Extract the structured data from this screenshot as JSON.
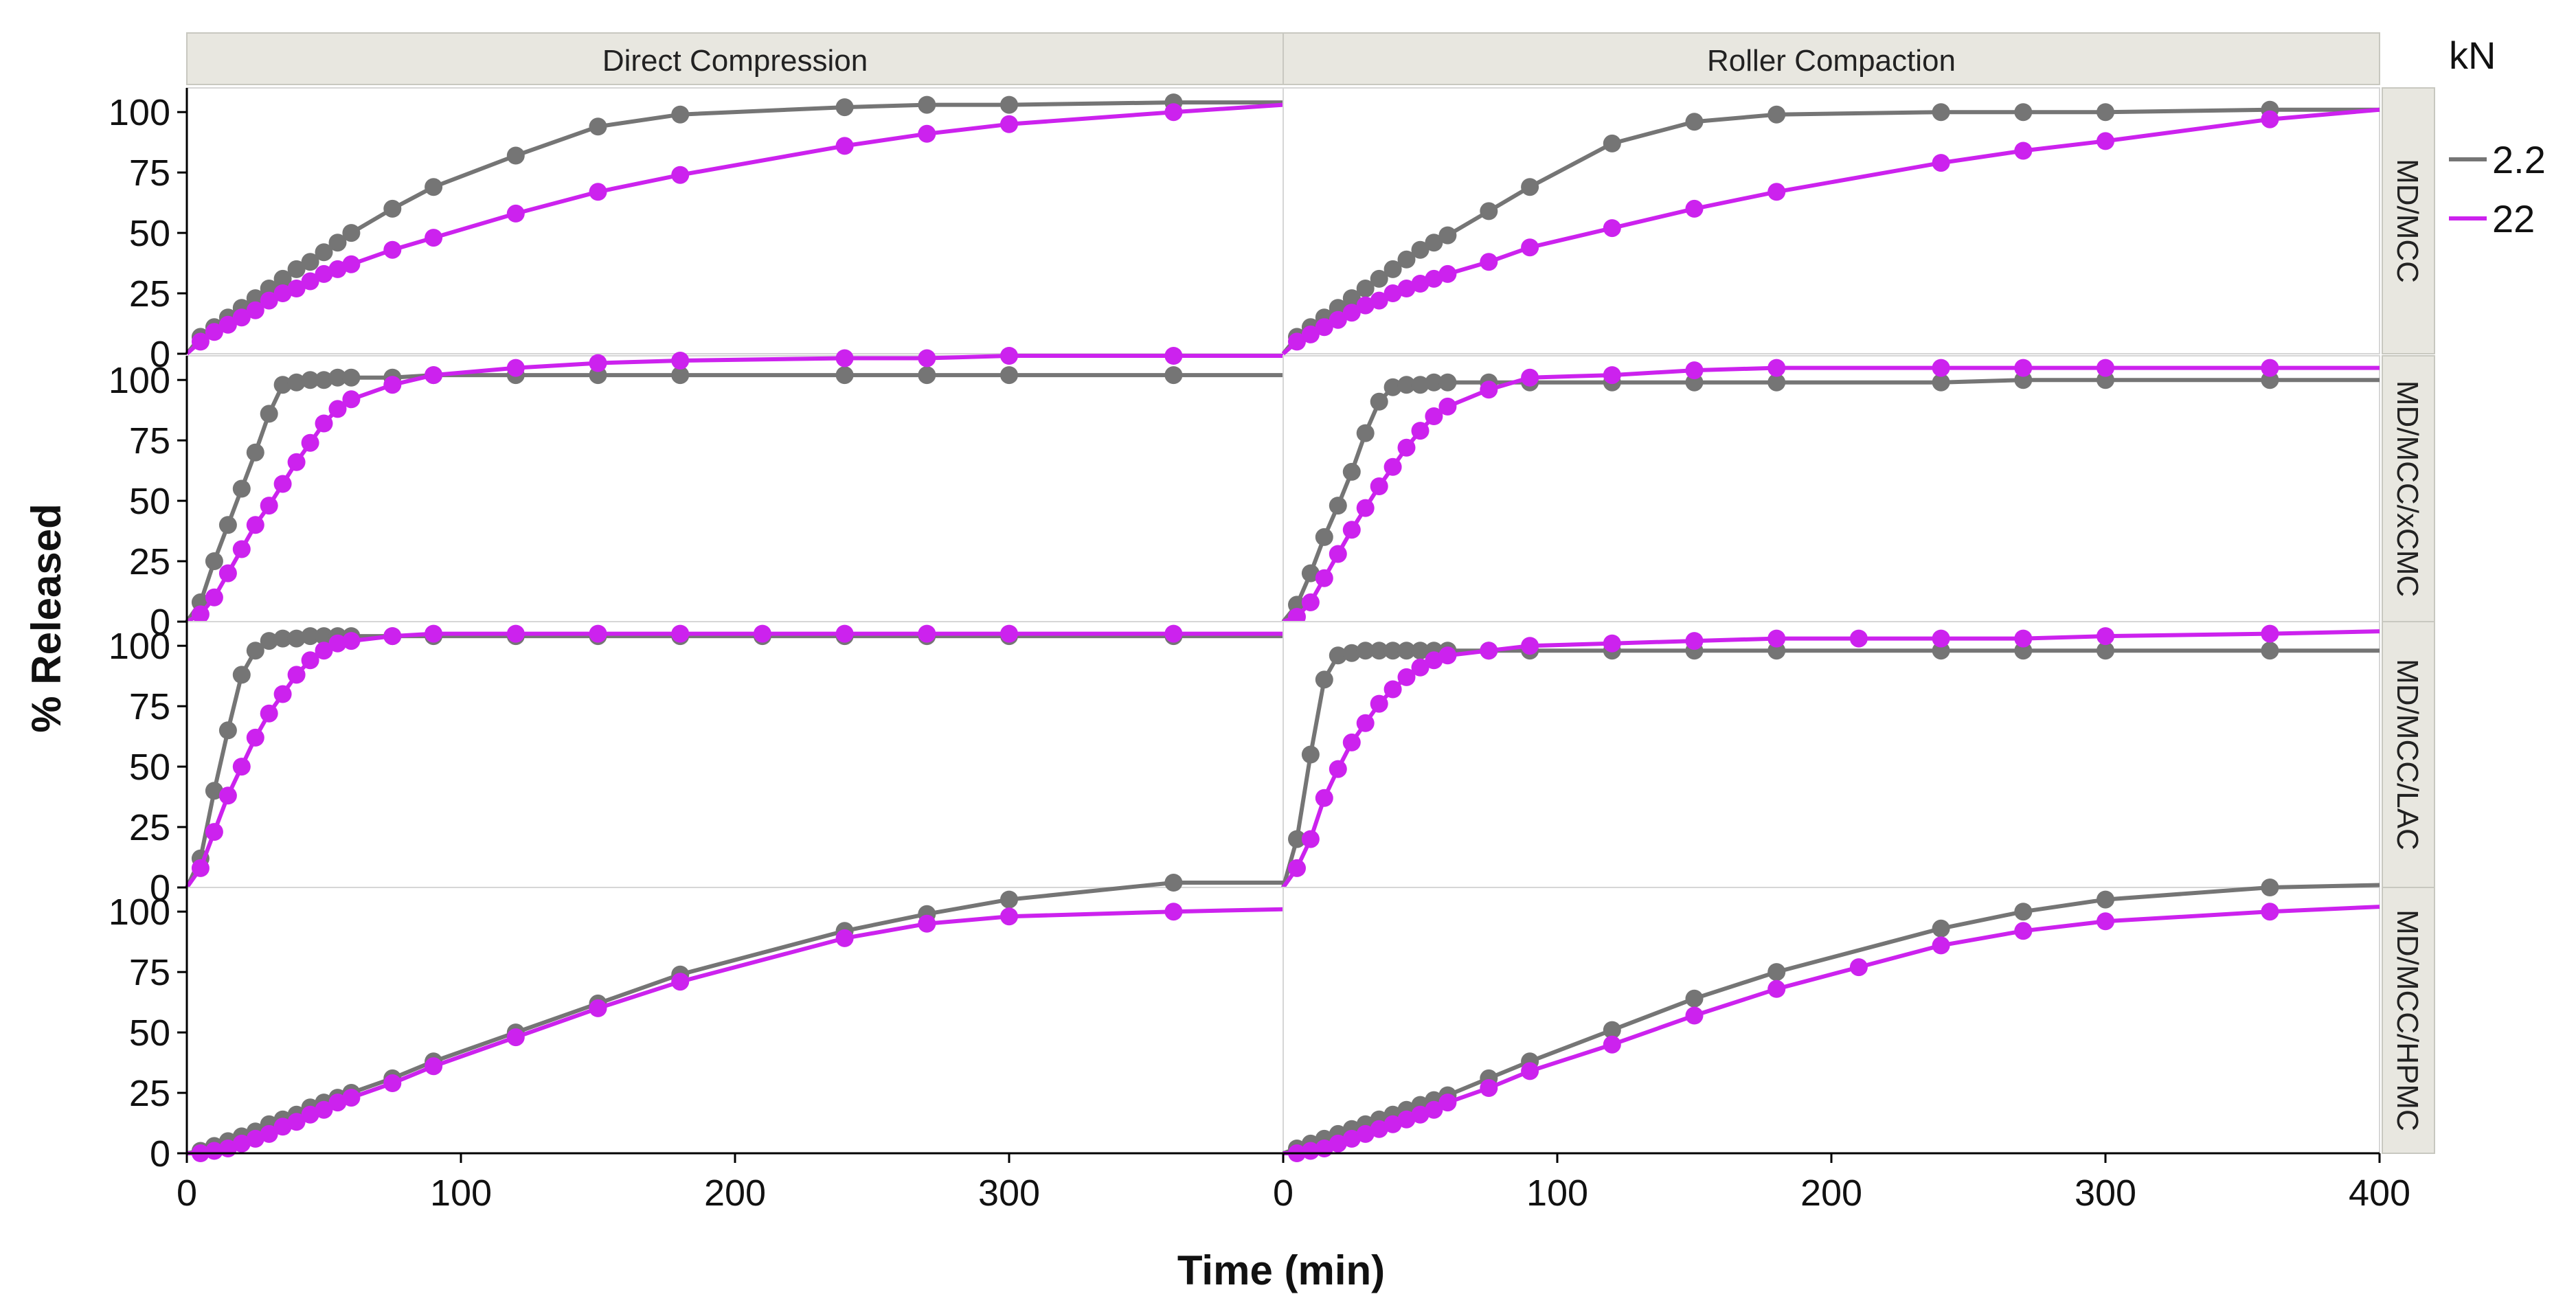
{
  "chart_data": {
    "type": "line",
    "xlabel": "Time (min)",
    "ylabel": "% Released",
    "xlim": [
      0,
      400
    ],
    "ylim": [
      0,
      110
    ],
    "x_ticks": [
      0,
      100,
      200,
      300,
      400
    ],
    "y_ticks": [
      0,
      25,
      50,
      75,
      100
    ],
    "legend": {
      "title": "kN",
      "position": "right",
      "entries": [
        {
          "label": "2.2",
          "color": "#757575"
        },
        {
          "label": "22",
          "color": "#cc22ee"
        }
      ]
    },
    "columns": [
      "Direct Compression",
      "Roller Compaction"
    ],
    "rows": [
      "MD/MCC",
      "MD/MCC/xCMC",
      "MD/MCC/LAC",
      "MD/MCC/HPMC"
    ],
    "panels": [
      {
        "column": "Direct Compression",
        "row": "MD/MCC",
        "series": [
          {
            "name": "2.2",
            "x": [
              0,
              5,
              10,
              15,
              20,
              25,
              30,
              35,
              40,
              45,
              50,
              55,
              60,
              75,
              90,
              120,
              150,
              180,
              240,
              270,
              300,
              360,
              400
            ],
            "y": [
              0,
              7,
              11,
              15,
              19,
              23,
              27,
              31,
              35,
              38,
              42,
              46,
              50,
              60,
              69,
              82,
              94,
              99,
              102,
              103,
              103,
              104,
              104
            ]
          },
          {
            "name": "22",
            "x": [
              0,
              5,
              10,
              15,
              20,
              25,
              30,
              35,
              40,
              45,
              50,
              55,
              60,
              75,
              90,
              120,
              150,
              180,
              240,
              270,
              300,
              360,
              400
            ],
            "y": [
              0,
              5,
              9,
              12,
              15,
              18,
              22,
              25,
              27,
              30,
              33,
              35,
              37,
              43,
              48,
              58,
              67,
              74,
              86,
              91,
              95,
              100,
              103
            ]
          }
        ]
      },
      {
        "column": "Roller Compaction",
        "row": "MD/MCC",
        "series": [
          {
            "name": "2.2",
            "x": [
              0,
              5,
              10,
              15,
              20,
              25,
              30,
              35,
              40,
              45,
              50,
              55,
              60,
              75,
              90,
              120,
              150,
              180,
              240,
              270,
              300,
              360,
              400
            ],
            "y": [
              0,
              7,
              11,
              15,
              19,
              23,
              27,
              31,
              35,
              39,
              43,
              46,
              49,
              59,
              69,
              87,
              96,
              99,
              100,
              100,
              100,
              101,
              101
            ]
          },
          {
            "name": "22",
            "x": [
              0,
              5,
              10,
              15,
              20,
              25,
              30,
              35,
              40,
              45,
              50,
              55,
              60,
              75,
              90,
              120,
              150,
              180,
              240,
              270,
              300,
              360,
              400
            ],
            "y": [
              0,
              5,
              8,
              11,
              14,
              17,
              20,
              22,
              25,
              27,
              29,
              31,
              33,
              38,
              44,
              52,
              60,
              67,
              79,
              84,
              88,
              97,
              101
            ]
          }
        ]
      },
      {
        "column": "Direct Compression",
        "row": "MD/MCC/xCMC",
        "series": [
          {
            "name": "2.2",
            "x": [
              0,
              5,
              10,
              15,
              20,
              25,
              30,
              35,
              40,
              45,
              50,
              55,
              60,
              75,
              90,
              120,
              150,
              180,
              240,
              270,
              300,
              360,
              400
            ],
            "y": [
              0,
              8,
              25,
              40,
              55,
              70,
              86,
              98,
              99,
              100,
              100,
              101,
              101,
              101,
              102,
              102,
              102,
              102,
              102,
              102,
              102,
              102,
              102
            ]
          },
          {
            "name": "22",
            "x": [
              0,
              5,
              10,
              15,
              20,
              25,
              30,
              35,
              40,
              45,
              50,
              55,
              60,
              75,
              90,
              120,
              150,
              180,
              240,
              270,
              300,
              360,
              400
            ],
            "y": [
              0,
              3,
              10,
              20,
              30,
              40,
              48,
              57,
              66,
              74,
              82,
              88,
              92,
              98,
              102,
              105,
              107,
              108,
              109,
              109,
              110,
              110,
              110
            ]
          }
        ]
      },
      {
        "column": "Roller Compaction",
        "row": "MD/MCC/xCMC",
        "series": [
          {
            "name": "2.2",
            "x": [
              0,
              5,
              10,
              15,
              20,
              25,
              30,
              35,
              40,
              45,
              50,
              55,
              60,
              75,
              90,
              120,
              150,
              180,
              240,
              270,
              300,
              360,
              400
            ],
            "y": [
              0,
              7,
              20,
              35,
              48,
              62,
              78,
              91,
              97,
              98,
              98,
              99,
              99,
              99,
              99,
              99,
              99,
              99,
              99,
              100,
              100,
              100,
              100
            ]
          },
          {
            "name": "22",
            "x": [
              0,
              5,
              10,
              15,
              20,
              25,
              30,
              35,
              40,
              45,
              50,
              55,
              60,
              75,
              90,
              120,
              150,
              180,
              240,
              270,
              300,
              360,
              400
            ],
            "y": [
              0,
              2,
              8,
              18,
              28,
              38,
              47,
              56,
              64,
              72,
              79,
              85,
              89,
              96,
              101,
              102,
              104,
              105,
              105,
              105,
              105,
              105,
              105
            ]
          }
        ]
      },
      {
        "column": "Direct Compression",
        "row": "MD/MCC/LAC",
        "series": [
          {
            "name": "2.2",
            "x": [
              0,
              5,
              10,
              15,
              20,
              25,
              30,
              35,
              40,
              45,
              50,
              55,
              60,
              75,
              90,
              120,
              150,
              180,
              210,
              240,
              270,
              300,
              360,
              400
            ],
            "y": [
              0,
              12,
              40,
              65,
              88,
              98,
              102,
              103,
              103,
              104,
              104,
              104,
              104,
              104,
              104,
              104,
              104,
              104,
              104,
              104,
              104,
              104,
              104,
              104
            ]
          },
          {
            "name": "22",
            "x": [
              0,
              5,
              10,
              15,
              20,
              25,
              30,
              35,
              40,
              45,
              50,
              55,
              60,
              75,
              90,
              120,
              150,
              180,
              210,
              240,
              270,
              300,
              360,
              400
            ],
            "y": [
              0,
              8,
              23,
              38,
              50,
              62,
              72,
              80,
              88,
              94,
              98,
              101,
              102,
              104,
              105,
              105,
              105,
              105,
              105,
              105,
              105,
              105,
              105,
              105
            ]
          }
        ]
      },
      {
        "column": "Roller Compaction",
        "row": "MD/MCC/LAC",
        "series": [
          {
            "name": "2.2",
            "x": [
              0,
              5,
              10,
              15,
              20,
              25,
              30,
              35,
              40,
              45,
              50,
              55,
              60,
              75,
              90,
              120,
              150,
              180,
              240,
              270,
              300,
              360,
              400
            ],
            "y": [
              0,
              20,
              55,
              86,
              96,
              97,
              98,
              98,
              98,
              98,
              98,
              98,
              98,
              98,
              98,
              98,
              98,
              98,
              98,
              98,
              98,
              98,
              98
            ]
          },
          {
            "name": "22",
            "x": [
              0,
              5,
              10,
              15,
              20,
              25,
              30,
              35,
              40,
              45,
              50,
              55,
              60,
              75,
              90,
              120,
              150,
              180,
              210,
              240,
              270,
              300,
              360,
              400
            ],
            "y": [
              0,
              8,
              20,
              37,
              49,
              60,
              68,
              76,
              82,
              87,
              91,
              94,
              96,
              98,
              100,
              101,
              102,
              103,
              103,
              103,
              103,
              104,
              105,
              106
            ]
          }
        ]
      },
      {
        "column": "Direct Compression",
        "row": "MD/MCC/HPMC",
        "series": [
          {
            "name": "2.2",
            "x": [
              0,
              5,
              10,
              15,
              20,
              25,
              30,
              35,
              40,
              45,
              50,
              55,
              60,
              75,
              90,
              120,
              150,
              180,
              240,
              270,
              300,
              360,
              400
            ],
            "y": [
              0,
              1,
              3,
              5,
              7,
              9,
              12,
              14,
              16,
              19,
              21,
              23,
              25,
              31,
              38,
              50,
              62,
              74,
              92,
              99,
              105,
              112,
              112
            ]
          },
          {
            "name": "22",
            "x": [
              0,
              5,
              10,
              15,
              20,
              25,
              30,
              35,
              40,
              45,
              50,
              55,
              60,
              75,
              90,
              120,
              150,
              180,
              240,
              270,
              300,
              360,
              400
            ],
            "y": [
              0,
              0,
              1,
              2,
              4,
              6,
              8,
              11,
              13,
              16,
              18,
              21,
              23,
              29,
              36,
              48,
              60,
              71,
              89,
              95,
              98,
              100,
              101
            ]
          }
        ]
      },
      {
        "column": "Roller Compaction",
        "row": "MD/MCC/HPMC",
        "series": [
          {
            "name": "2.2",
            "x": [
              0,
              5,
              10,
              15,
              20,
              25,
              30,
              35,
              40,
              45,
              50,
              55,
              60,
              75,
              90,
              120,
              150,
              180,
              240,
              270,
              300,
              360,
              400
            ],
            "y": [
              0,
              2,
              4,
              6,
              8,
              10,
              12,
              14,
              16,
              18,
              20,
              22,
              24,
              31,
              38,
              51,
              64,
              75,
              93,
              100,
              105,
              110,
              111
            ]
          },
          {
            "name": "22",
            "x": [
              0,
              5,
              10,
              15,
              20,
              25,
              30,
              35,
              40,
              45,
              50,
              55,
              60,
              75,
              90,
              120,
              150,
              180,
              210,
              240,
              270,
              300,
              360,
              400
            ],
            "y": [
              0,
              0,
              1,
              2,
              4,
              6,
              8,
              10,
              12,
              14,
              16,
              18,
              21,
              27,
              34,
              45,
              57,
              68,
              77,
              86,
              92,
              96,
              100,
              102
            ]
          }
        ]
      }
    ]
  }
}
